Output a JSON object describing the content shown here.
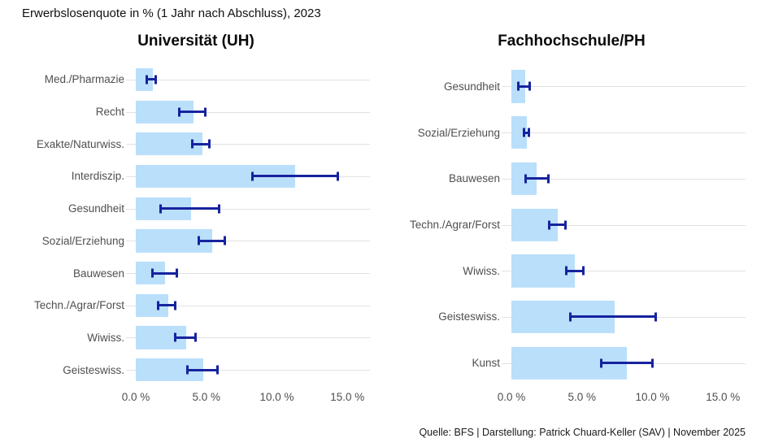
{
  "page": {
    "title": "Erwerbslosenquote in % (1 Jahr nach Abschluss), 2023",
    "source_note": "Quelle: BFS | Darstellung: Patrick Chuard-Keller (SAV) | November 2025"
  },
  "colors": {
    "bar_fill": "#b9dffb",
    "error_bar": "#16239e",
    "gridline": "#e2e2e2",
    "axis_text": "#4f4f4f"
  },
  "axis": {
    "tick_labels": [
      "0.0 %",
      "5.0 %",
      "10.0 %",
      "15.0 %"
    ],
    "tick_values": [
      0,
      5,
      10,
      15
    ],
    "max": 16.6
  },
  "chart_data": [
    {
      "type": "bar",
      "orientation": "horizontal",
      "title": "Universität (UH)",
      "xlabel": "Erwerbslosenquote in %",
      "xlim": [
        0,
        16.6
      ],
      "xticks": [
        0,
        5,
        10,
        15
      ],
      "grid": "per-category horizontal lines",
      "categories": [
        "Med./Pharmazie",
        "Recht",
        "Exakte/Naturwiss.",
        "Interdiszip.",
        "Gesundheit",
        "Sozial/Erziehung",
        "Bauwesen",
        "Techn./Agrar/Forst",
        "Wiwiss.",
        "Geisteswiss."
      ],
      "values": [
        1.2,
        4.1,
        4.7,
        11.3,
        3.9,
        5.4,
        2.1,
        2.3,
        3.6,
        4.8
      ],
      "ci_low": [
        0.7,
        3.0,
        3.9,
        8.2,
        1.7,
        4.4,
        1.1,
        1.5,
        2.7,
        3.6
      ],
      "ci_high": [
        1.5,
        5.0,
        5.3,
        14.4,
        6.0,
        6.4,
        3.0,
        2.9,
        4.3,
        5.9
      ]
    },
    {
      "type": "bar",
      "orientation": "horizontal",
      "title": "Fachhochschule/PH",
      "xlabel": "Erwerbslosenquote in %",
      "xlim": [
        0,
        16.6
      ],
      "xticks": [
        0,
        5,
        10,
        15
      ],
      "grid": "per-category horizontal lines",
      "categories": [
        "Gesundheit",
        "Sozial/Erziehung",
        "Bauwesen",
        "Techn./Agrar/Forst",
        "Wiwiss.",
        "Geisteswiss.",
        "Kunst"
      ],
      "values": [
        1.0,
        1.1,
        1.8,
        3.3,
        4.5,
        7.3,
        8.2
      ],
      "ci_low": [
        0.4,
        0.8,
        0.9,
        2.6,
        3.8,
        4.1,
        6.3
      ],
      "ci_high": [
        1.4,
        1.3,
        2.7,
        3.9,
        5.2,
        10.3,
        10.1
      ]
    }
  ]
}
